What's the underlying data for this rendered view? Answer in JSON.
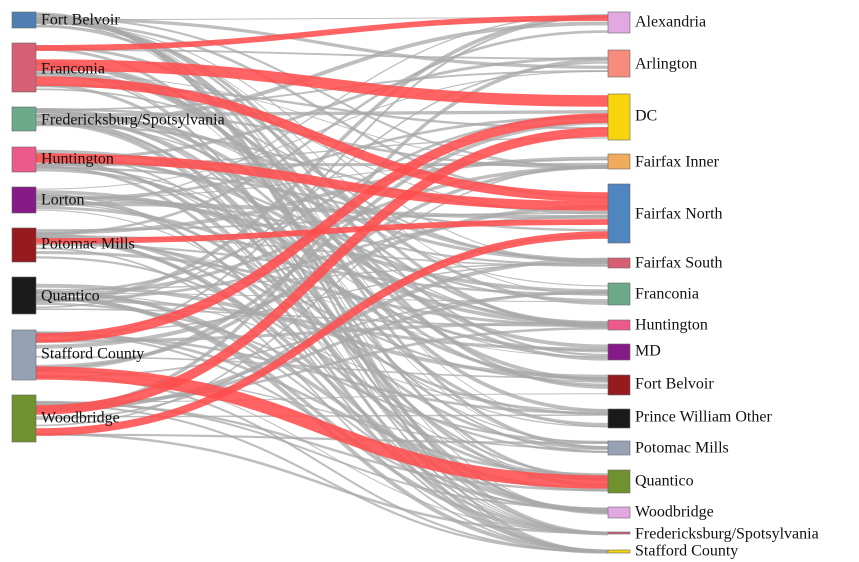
{
  "chart_data": {
    "type": "sankey",
    "colors": {
      "link": "#a8a8a8",
      "highlight": "#ff4d4d"
    },
    "sources": [
      {
        "id": "s-fort-belvoir",
        "label": "Fort Belvoir",
        "color": "#4f7fb2"
      },
      {
        "id": "s-franconia",
        "label": "Franconia",
        "color": "#d65f74"
      },
      {
        "id": "s-fredericksburg",
        "label": "Fredericksburg/Spotsylvania",
        "color": "#6caa8b"
      },
      {
        "id": "s-huntington",
        "label": "Huntington",
        "color": "#ec5a8c"
      },
      {
        "id": "s-lorton",
        "label": "Lorton",
        "color": "#861a86"
      },
      {
        "id": "s-potomac-mills",
        "label": "Potomac Mills",
        "color": "#961b1e"
      },
      {
        "id": "s-quantico",
        "label": "Quantico",
        "color": "#1a1a1a"
      },
      {
        "id": "s-stafford",
        "label": "Stafford County",
        "color": "#96a2b4"
      },
      {
        "id": "s-woodbridge",
        "label": "Woodbridge",
        "color": "#70922e"
      }
    ],
    "targets": [
      {
        "id": "t-alexandria",
        "label": "Alexandria",
        "color": "#e2a8e2"
      },
      {
        "id": "t-arlington",
        "label": "Arlington",
        "color": "#f68c7c"
      },
      {
        "id": "t-dc",
        "label": "DC",
        "color": "#f8d40c"
      },
      {
        "id": "t-fairfax-inner",
        "label": "Fairfax Inner",
        "color": "#f0ac5c"
      },
      {
        "id": "t-fairfax-north",
        "label": "Fairfax North",
        "color": "#4f86c0"
      },
      {
        "id": "t-fairfax-south",
        "label": "Fairfax South",
        "color": "#d65f74"
      },
      {
        "id": "t-franconia",
        "label": "Franconia",
        "color": "#6caa8b"
      },
      {
        "id": "t-huntington",
        "label": "Huntington",
        "color": "#ec5a8c"
      },
      {
        "id": "t-md",
        "label": "MD",
        "color": "#861a86"
      },
      {
        "id": "t-fort-belvoir",
        "label": "Fort Belvoir",
        "color": "#961b1e"
      },
      {
        "id": "t-pw-other",
        "label": "Prince William Other",
        "color": "#1a1a1a"
      },
      {
        "id": "t-potomac-mills",
        "label": "Potomac Mills",
        "color": "#96a2b4"
      },
      {
        "id": "t-quantico",
        "label": "Quantico",
        "color": "#70922e"
      },
      {
        "id": "t-woodbridge",
        "label": "Woodbridge",
        "color": "#e2a8e2"
      },
      {
        "id": "t-fredericksburg",
        "label": "Fredericksburg/Spotsylvania",
        "color": "#d65f74"
      },
      {
        "id": "t-stafford",
        "label": "Stafford County",
        "color": "#f8d40c"
      }
    ],
    "highlighted_links": [
      {
        "source": "Franconia",
        "target": "Alexandria",
        "value": 3
      },
      {
        "source": "Franconia",
        "target": "DC",
        "value": 6
      },
      {
        "source": "Franconia",
        "target": "Fairfax North",
        "value": 5
      },
      {
        "source": "Huntington",
        "target": "Fairfax North",
        "value": 5
      },
      {
        "source": "Potomac Mills",
        "target": "Fairfax North",
        "value": 3
      },
      {
        "source": "Stafford County",
        "target": "DC",
        "value": 5
      },
      {
        "source": "Stafford County",
        "target": "Quantico",
        "value": 7
      },
      {
        "source": "Woodbridge",
        "target": "DC",
        "value": 5
      },
      {
        "source": "Woodbridge",
        "target": "Fairfax North",
        "value": 4
      }
    ]
  }
}
